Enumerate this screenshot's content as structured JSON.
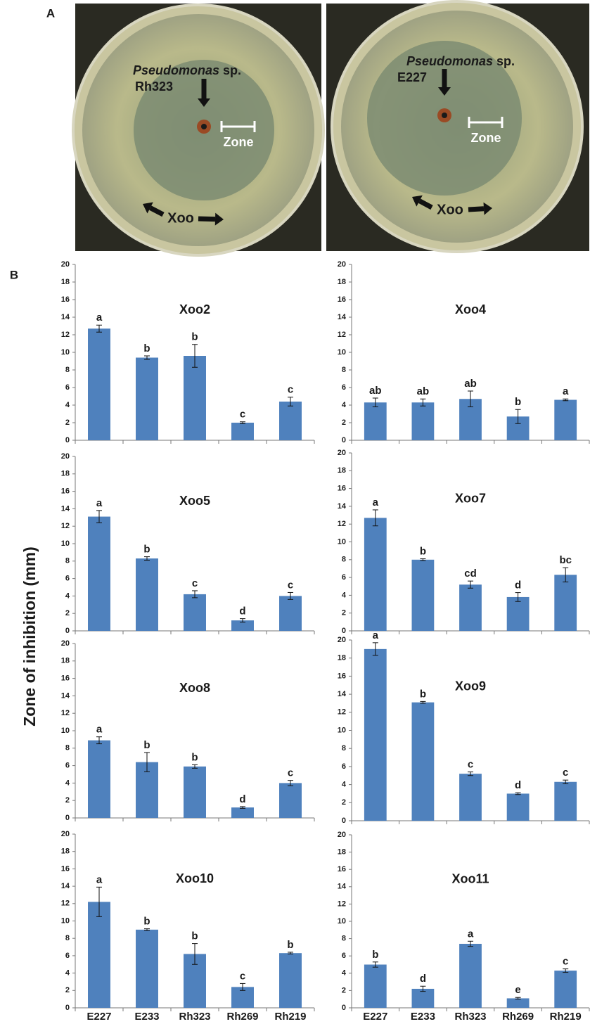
{
  "panel_labels": [
    "A",
    "B"
  ],
  "y_axis_label": "Zone of inhibition (mm)",
  "photos": [
    {
      "genus": "Pseudomonas",
      "species": "sp.",
      "strain": "Rh323",
      "zone": "Zone",
      "pathogen": "Xoo"
    },
    {
      "genus": "Pseudomonas",
      "species": "sp.",
      "strain": "E227",
      "zone": "Zone",
      "pathogen": "Xoo"
    }
  ],
  "chart_data": [
    {
      "type": "bar",
      "title": "Xoo2",
      "categories": [
        null,
        null,
        null,
        null,
        null
      ],
      "values": [
        12.7,
        9.4,
        9.6,
        2.0,
        4.4
      ],
      "errors": [
        0.4,
        0.2,
        1.3,
        0.1,
        0.5
      ],
      "letters": [
        "a",
        "b",
        "b",
        "c",
        "c"
      ],
      "color": "#4f81bd",
      "ylim": [
        0,
        20
      ],
      "yticks": [
        0,
        2,
        4,
        6,
        8,
        10,
        12,
        14,
        16,
        18,
        20
      ]
    },
    {
      "type": "bar",
      "title": "Xoo4",
      "categories": [
        null,
        null,
        null,
        null,
        null
      ],
      "values": [
        4.3,
        4.3,
        4.7,
        2.7,
        4.6
      ],
      "errors": [
        0.5,
        0.4,
        0.9,
        0.8,
        0.1
      ],
      "letters": [
        "ab",
        "ab",
        "ab",
        "b",
        "a"
      ],
      "color": "#4f81bd",
      "ylim": [
        0,
        20
      ],
      "yticks": [
        0,
        2,
        4,
        6,
        8,
        10,
        12,
        14,
        16,
        18,
        20
      ]
    },
    {
      "type": "bar",
      "title": "Xoo5",
      "categories": [
        null,
        null,
        null,
        null,
        null
      ],
      "values": [
        13.1,
        8.3,
        4.2,
        1.2,
        4.0
      ],
      "errors": [
        0.7,
        0.2,
        0.4,
        0.2,
        0.4
      ],
      "letters": [
        "a",
        "b",
        "c",
        "d",
        "c"
      ],
      "color": "#4f81bd",
      "ylim": [
        0,
        20
      ],
      "yticks": [
        0,
        2,
        4,
        6,
        8,
        10,
        12,
        14,
        16,
        18,
        20
      ]
    },
    {
      "type": "bar",
      "title": "Xoo7",
      "categories": [
        null,
        null,
        null,
        null,
        null
      ],
      "values": [
        12.7,
        8.0,
        5.2,
        3.8,
        6.3
      ],
      "errors": [
        0.9,
        0.1,
        0.4,
        0.5,
        0.8
      ],
      "letters": [
        "a",
        "b",
        "cd",
        "d",
        "bc"
      ],
      "color": "#4f81bd",
      "ylim": [
        0,
        20
      ],
      "yticks": [
        0,
        2,
        4,
        6,
        8,
        10,
        12,
        14,
        16,
        18,
        20
      ]
    },
    {
      "type": "bar",
      "title": "Xoo8",
      "categories": [
        null,
        null,
        null,
        null,
        null
      ],
      "values": [
        8.9,
        6.4,
        5.9,
        1.2,
        4.0
      ],
      "errors": [
        0.4,
        1.1,
        0.2,
        0.1,
        0.3
      ],
      "letters": [
        "a",
        "b",
        "b",
        "d",
        "c"
      ],
      "color": "#4f81bd",
      "ylim": [
        0,
        20
      ],
      "yticks": [
        0,
        2,
        4,
        6,
        8,
        10,
        12,
        14,
        16,
        18,
        20
      ]
    },
    {
      "type": "bar",
      "title": "Xoo9",
      "categories": [
        null,
        null,
        null,
        null,
        null
      ],
      "values": [
        19.0,
        13.1,
        5.2,
        3.0,
        4.3
      ],
      "errors": [
        0.7,
        0.1,
        0.2,
        0.1,
        0.2
      ],
      "letters": [
        "a",
        "b",
        "c",
        "d",
        "c"
      ],
      "color": "#4f81bd",
      "ylim": [
        0,
        20
      ],
      "yticks": [
        0,
        2,
        4,
        6,
        8,
        10,
        12,
        14,
        16,
        18,
        20
      ]
    },
    {
      "type": "bar",
      "title": "Xoo10",
      "categories": [
        "E227",
        "E233",
        "Rh323",
        "Rh269",
        "Rh219"
      ],
      "values": [
        12.2,
        9.0,
        6.2,
        2.4,
        6.3
      ],
      "errors": [
        1.7,
        0.1,
        1.2,
        0.4,
        0.1
      ],
      "letters": [
        "a",
        "b",
        "b",
        "c",
        "b"
      ],
      "color": "#4f81bd",
      "ylim": [
        0,
        20
      ],
      "yticks": [
        0,
        2,
        4,
        6,
        8,
        10,
        12,
        14,
        16,
        18,
        20
      ]
    },
    {
      "type": "bar",
      "title": "Xoo11",
      "categories": [
        "E227",
        "E233",
        "Rh323",
        "Rh269",
        "Rh219"
      ],
      "values": [
        5.0,
        2.2,
        7.4,
        1.1,
        4.3
      ],
      "errors": [
        0.3,
        0.3,
        0.3,
        0.1,
        0.2
      ],
      "letters": [
        "b",
        "d",
        "a",
        "e",
        "c"
      ],
      "color": "#4f81bd",
      "ylim": [
        0,
        20
      ],
      "yticks": [
        0,
        2,
        4,
        6,
        8,
        10,
        12,
        14,
        16,
        18,
        20
      ]
    }
  ]
}
